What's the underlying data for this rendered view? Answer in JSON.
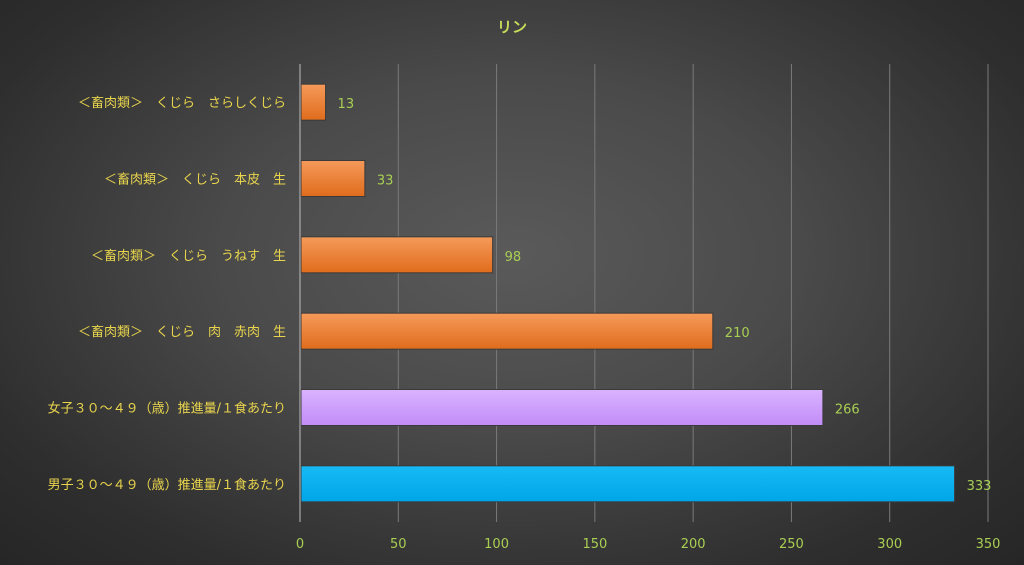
{
  "chart_data": {
    "type": "bar",
    "orientation": "horizontal",
    "title": "リン",
    "categories": [
      "＜畜肉類＞　くじら　さらしくじら",
      "＜畜肉類＞　くじら　本皮　生",
      "＜畜肉類＞　くじら　うねす　生",
      "＜畜肉類＞　くじら　肉　赤肉　生",
      "女子３０～４９（歳）推進量/１食あたり",
      "男子３０～４９（歳）推進量/１食あたり"
    ],
    "values": [
      13,
      33,
      98,
      210,
      266,
      333
    ],
    "bar_colors": [
      "#ed7d31",
      "#ed7d31",
      "#ed7d31",
      "#ed7d31",
      "#cc99ff",
      "#00b0f0"
    ],
    "xlim": [
      0,
      350
    ],
    "xticks": [
      0,
      50,
      100,
      150,
      200,
      250,
      300,
      350
    ],
    "grid": true,
    "legend": "none"
  }
}
